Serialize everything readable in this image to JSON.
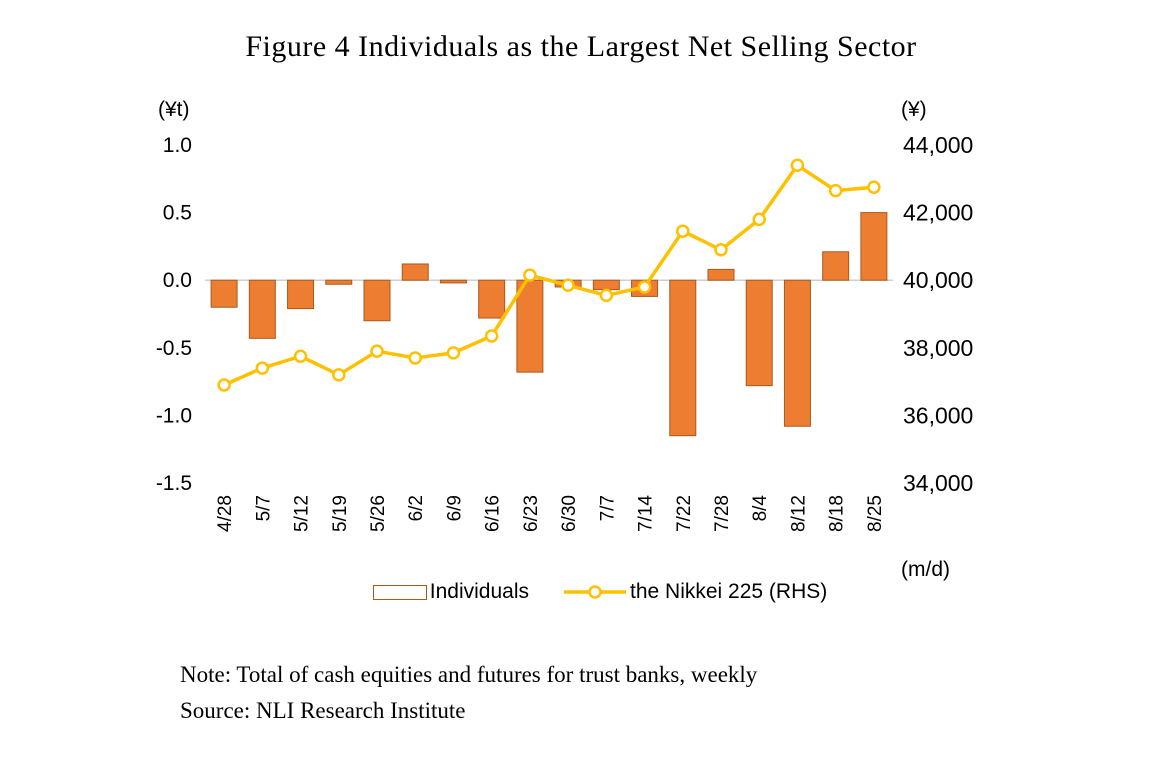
{
  "title": "Figure 4 Individuals as the Largest Net Selling Sector",
  "note": "Note: Total of cash equities and futures for trust banks, weekly",
  "source": "Source: NLI Research Institute",
  "axes": {
    "left_unit": "(¥t)",
    "right_unit": "(¥)",
    "x_unit": "(m/d)",
    "left_ticks": [
      "1.0",
      "0.5",
      "0.0",
      "-0.5",
      "-1.0",
      "-1.5"
    ],
    "right_ticks": [
      "44,000",
      "42,000",
      "40,000",
      "38,000",
      "36,000",
      "34,000"
    ]
  },
  "legend": [
    {
      "label": "Individuals",
      "type": "bar"
    },
    {
      "label": "the Nikkei 225 (RHS)",
      "type": "line"
    }
  ],
  "colors": {
    "bar": "#ED7D31",
    "bar_border": "#A85A1B",
    "line": "#FFC000",
    "marker_fill": "#FFFFFF",
    "zero_line": "#BFBFBF",
    "text": "#000000"
  },
  "chart_data": {
    "type": "bar+line",
    "title": "Figure 4 Individuals as the Largest Net Selling Sector",
    "xlabel": "(m/d)",
    "ylabel_left": "(¥t)",
    "ylabel_right": "(¥)",
    "left_ylim": [
      -1.5,
      1.0
    ],
    "right_ylim": [
      34000,
      44000
    ],
    "grid": false,
    "legend_position": "bottom",
    "categories": [
      "4/28",
      "5/7",
      "5/12",
      "5/19",
      "5/26",
      "6/2",
      "6/9",
      "6/16",
      "6/23",
      "6/30",
      "7/7",
      "7/14",
      "7/22",
      "7/28",
      "8/4",
      "8/12",
      "8/18",
      "8/25"
    ],
    "series": [
      {
        "name": "Individuals",
        "type": "bar",
        "axis": "left",
        "values": [
          -0.2,
          -0.43,
          -0.21,
          -0.03,
          -0.3,
          0.12,
          -0.02,
          -0.28,
          -0.68,
          -0.05,
          -0.07,
          -0.12,
          -1.15,
          0.08,
          -0.78,
          -1.08,
          0.21,
          0.5
        ]
      },
      {
        "name": "the Nikkei 225 (RHS)",
        "type": "line",
        "axis": "right",
        "values": [
          36900,
          37400,
          37750,
          37200,
          37900,
          37700,
          37850,
          38350,
          40150,
          39850,
          39550,
          39800,
          41450,
          40900,
          41800,
          43400,
          42650,
          42750
        ]
      }
    ]
  }
}
